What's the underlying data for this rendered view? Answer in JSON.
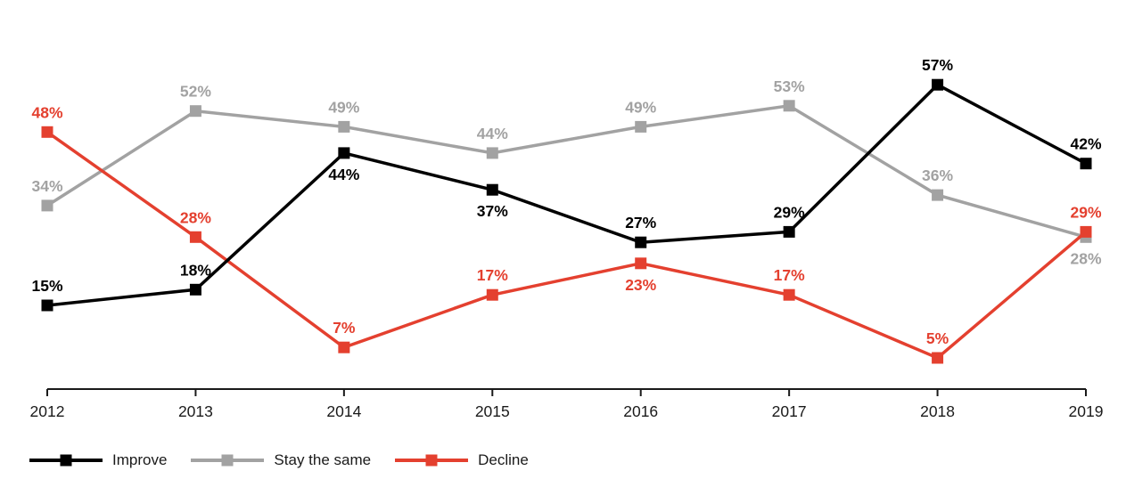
{
  "chart_data": {
    "type": "line",
    "title": "",
    "x_categories": [
      "2012",
      "2013",
      "2014",
      "2015",
      "2016",
      "2017",
      "2018",
      "2019"
    ],
    "series": [
      {
        "name": "Improve",
        "color": "#000000",
        "values": [
          15,
          18,
          44,
          37,
          27,
          29,
          57,
          42
        ],
        "label_positions": [
          "above",
          "above",
          "below",
          "below",
          "above",
          "above",
          "above",
          "above"
        ]
      },
      {
        "name": "Stay the same",
        "color": "#a2a2a2",
        "values": [
          34,
          52,
          49,
          44,
          49,
          53,
          36,
          28
        ],
        "label_positions": [
          "above",
          "above",
          "above",
          "above",
          "above",
          "above",
          "above",
          "below"
        ]
      },
      {
        "name": "Decline",
        "color": "#e4402f",
        "values": [
          48,
          28,
          7,
          17,
          23,
          17,
          5,
          29
        ],
        "label_positions": [
          "above",
          "above",
          "above",
          "above",
          "below",
          "above",
          "above",
          "above"
        ]
      }
    ],
    "value_suffix": "%",
    "ylim": [
      0,
      65
    ],
    "grid": false,
    "legend_position": "bottom-left",
    "draw_order": [
      1,
      2,
      0
    ],
    "axis_color": "#1a1a1a",
    "marker_shape": "square"
  }
}
